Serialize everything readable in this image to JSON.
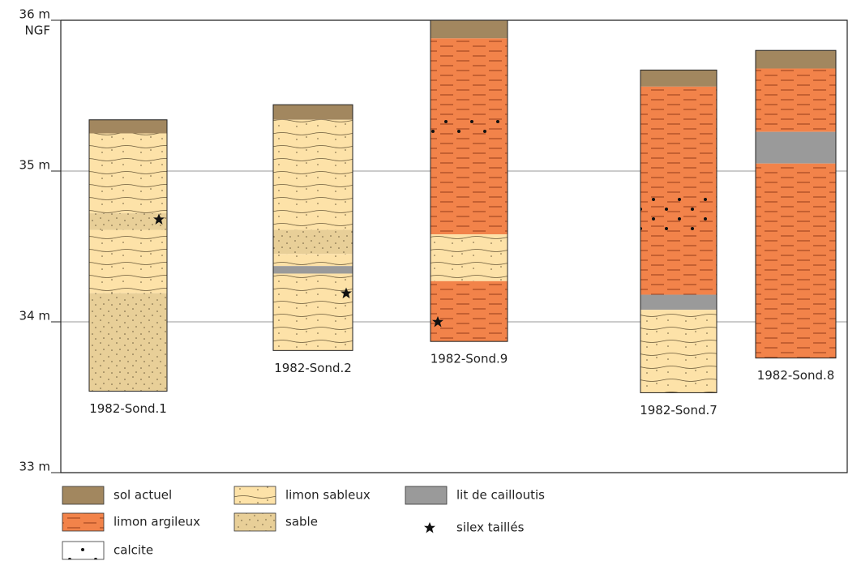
{
  "y_axis": {
    "ylim": [
      33,
      36
    ],
    "unit": "NGF",
    "ticks": [
      {
        "value": 36,
        "label": "36 m"
      },
      {
        "value": 35,
        "label": "35 m"
      },
      {
        "value": 34,
        "label": "34 m"
      },
      {
        "value": 33,
        "label": "33 m"
      }
    ]
  },
  "legend": [
    {
      "label": "sol actuel"
    },
    {
      "label": "limon argileux"
    },
    {
      "label": "calcite"
    },
    {
      "label": "limon sableux"
    },
    {
      "label": "sable"
    },
    {
      "label": "lit de cailloutis"
    },
    {
      "label": "silex taillés"
    }
  ],
  "columns": [
    {
      "label": "1982-Sond.1",
      "layers": [
        {
          "material": "sol actuel",
          "top": 35.34,
          "bottom": 35.25
        },
        {
          "material": "limon sableux",
          "top": 35.25,
          "bottom": 34.72
        },
        {
          "material": "sable",
          "top": 34.72,
          "bottom": 34.61
        },
        {
          "material": "limon sableux",
          "top": 34.61,
          "bottom": 34.19
        },
        {
          "material": "sable",
          "top": 34.19,
          "bottom": 33.54
        }
      ],
      "finds": [
        34.68
      ]
    },
    {
      "label": "1982-Sond.2",
      "layers": [
        {
          "material": "sol actuel",
          "top": 35.44,
          "bottom": 35.34
        },
        {
          "material": "limon sableux",
          "top": 35.34,
          "bottom": 34.61
        },
        {
          "material": "sable",
          "top": 34.61,
          "bottom": 34.45
        },
        {
          "material": "limon sableux",
          "top": 34.45,
          "bottom": 34.37
        },
        {
          "material": "lit de cailloutis",
          "top": 34.37,
          "bottom": 34.32
        },
        {
          "material": "limon sableux",
          "top": 34.32,
          "bottom": 33.81
        }
      ],
      "finds": [
        34.19
      ]
    },
    {
      "label": "1982-Sond.9",
      "layers": [
        {
          "material": "sol actuel",
          "top": 36.0,
          "bottom": 35.88
        },
        {
          "material": "limon argileux",
          "top": 35.88,
          "bottom": 34.58
        },
        {
          "material": "limon sableux",
          "top": 34.58,
          "bottom": 34.27
        },
        {
          "material": "limon argileux",
          "top": 34.27,
          "bottom": 33.87
        },
        {
          "material": "calcite",
          "top": 35.38,
          "bottom": 35.21
        }
      ],
      "finds": [
        34.0
      ]
    },
    {
      "label": "1982-Sond.7",
      "layers": [
        {
          "material": "sol actuel",
          "top": 35.67,
          "bottom": 35.56
        },
        {
          "material": "limon argileux",
          "top": 35.56,
          "bottom": 34.18
        },
        {
          "material": "lit de cailloutis",
          "top": 34.18,
          "bottom": 34.08
        },
        {
          "material": "limon sableux",
          "top": 34.08,
          "bottom": 33.53
        },
        {
          "material": "calcite",
          "top": 34.84,
          "bottom": 34.6
        }
      ],
      "finds": []
    },
    {
      "label": "1982-Sond.8",
      "layers": [
        {
          "material": "sol actuel",
          "top": 35.8,
          "bottom": 35.68
        },
        {
          "material": "limon argileux",
          "top": 35.68,
          "bottom": 35.26
        },
        {
          "material": "lit de cailloutis",
          "top": 35.26,
          "bottom": 35.05
        },
        {
          "material": "limon argileux",
          "top": 35.05,
          "bottom": 33.76
        }
      ],
      "finds": []
    }
  ]
}
